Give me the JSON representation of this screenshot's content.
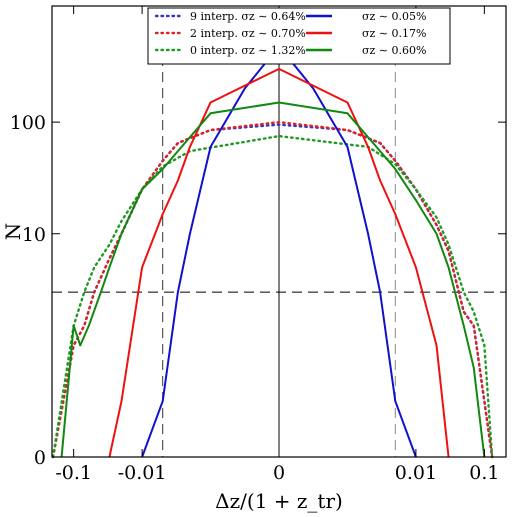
{
  "chart_data": {
    "type": "line",
    "title": "",
    "xlabel": "Δz/(1 + z_tr)",
    "ylabel": "N",
    "x_scale": "symlog",
    "y_scale": "symlog",
    "xlim": [
      -0.3,
      0.3
    ],
    "ylim": [
      0,
      1000
    ],
    "x_ticks": [
      {
        "value": -0.1,
        "label": "-0.1"
      },
      {
        "value": -0.01,
        "label": "-0.01"
      },
      {
        "value": 0,
        "label": "0"
      },
      {
        "value": 0.01,
        "label": "0.01"
      },
      {
        "value": 0.1,
        "label": "0.1"
      }
    ],
    "y_ticks": [
      {
        "value": 0,
        "label": "0"
      },
      {
        "value": 10,
        "label": "10"
      },
      {
        "value": 100,
        "label": "100"
      }
    ],
    "grid": false,
    "legend_position": "top",
    "reference_lines": {
      "vertical_solid": [
        0
      ],
      "vertical_dashed": [
        -0.005,
        0.005
      ],
      "horizontal_dashed": [
        3
      ]
    },
    "series": [
      {
        "name": "9 interp. σz ∼ 0.64%",
        "color": "#3333cc",
        "style": "dotted",
        "x": [
          -0.2,
          -0.1,
          -0.07,
          -0.05,
          -0.03,
          -0.02,
          -0.01,
          -0.005,
          -0.003,
          -0.001,
          0,
          0.001,
          0.003,
          0.005,
          0.01,
          0.02,
          0.03,
          0.05,
          0.07,
          0.1,
          0.13
        ],
        "y": [
          0,
          1,
          1.5,
          3,
          6,
          10,
          25,
          45,
          65,
          85,
          95,
          85,
          65,
          45,
          25,
          12,
          7,
          2,
          1.5,
          0.5,
          0
        ]
      },
      {
        "name": "2 interp. σz ∼ 0.70%",
        "color": "#dd2222",
        "style": "dotted",
        "x": [
          -0.2,
          -0.1,
          -0.07,
          -0.05,
          -0.03,
          -0.02,
          -0.01,
          -0.005,
          -0.003,
          -0.001,
          0,
          0.001,
          0.003,
          0.005,
          0.01,
          0.02,
          0.03,
          0.05,
          0.07,
          0.1,
          0.13
        ],
        "y": [
          0,
          1,
          1.5,
          3,
          6,
          10,
          25,
          45,
          65,
          85,
          100,
          85,
          65,
          45,
          25,
          12,
          7,
          2,
          1.5,
          0.5,
          0
        ]
      },
      {
        "name": "0 interp. σz ∼ 1.32%",
        "color": "#229922",
        "style": "dotted",
        "x": [
          -0.2,
          -0.1,
          -0.07,
          -0.05,
          -0.03,
          -0.02,
          -0.01,
          -0.005,
          -0.002,
          0,
          0.002,
          0.005,
          0.01,
          0.02,
          0.03,
          0.05,
          0.07,
          0.1,
          0.13
        ],
        "y": [
          0,
          1.5,
          3,
          5,
          8,
          13,
          25,
          40,
          55,
          75,
          60,
          42,
          25,
          14,
          8,
          3,
          2,
          1,
          0
        ]
      },
      {
        "name": "σz ∼ 0.05%",
        "color": "#1111cc",
        "style": "solid",
        "x": [
          -0.01,
          -0.005,
          -0.003,
          -0.002,
          -0.001,
          -0.0005,
          0,
          0.0005,
          0.001,
          0.002,
          0.003,
          0.005,
          0.01
        ],
        "y": [
          0,
          0.5,
          3,
          10,
          60,
          200,
          480,
          200,
          60,
          10,
          3,
          0.5,
          0
        ]
      },
      {
        "name": "σz ∼ 0.17%",
        "color": "#ee1111",
        "style": "solid",
        "x": [
          -0.03,
          -0.02,
          -0.01,
          -0.005,
          -0.003,
          -0.002,
          -0.001,
          0,
          0.001,
          0.002,
          0.003,
          0.005,
          0.01,
          0.02,
          0.03
        ],
        "y": [
          0,
          0.5,
          5,
          15,
          30,
          60,
          150,
          300,
          150,
          60,
          30,
          15,
          5,
          1,
          0
        ]
      },
      {
        "name": "σz ∼ 0.60%",
        "color": "#118811",
        "style": "solid",
        "x": [
          -0.15,
          -0.1,
          -0.08,
          -0.06,
          -0.04,
          -0.03,
          -0.02,
          -0.01,
          -0.005,
          -0.003,
          -0.001,
          0,
          0.001,
          0.003,
          0.005,
          0.01,
          0.02,
          0.03,
          0.05,
          0.07,
          0.1
        ],
        "y": [
          0,
          1.5,
          1,
          1.5,
          3,
          5,
          10,
          25,
          38,
          55,
          120,
          150,
          120,
          55,
          38,
          20,
          10,
          5,
          1.5,
          0.8,
          0
        ]
      }
    ]
  }
}
